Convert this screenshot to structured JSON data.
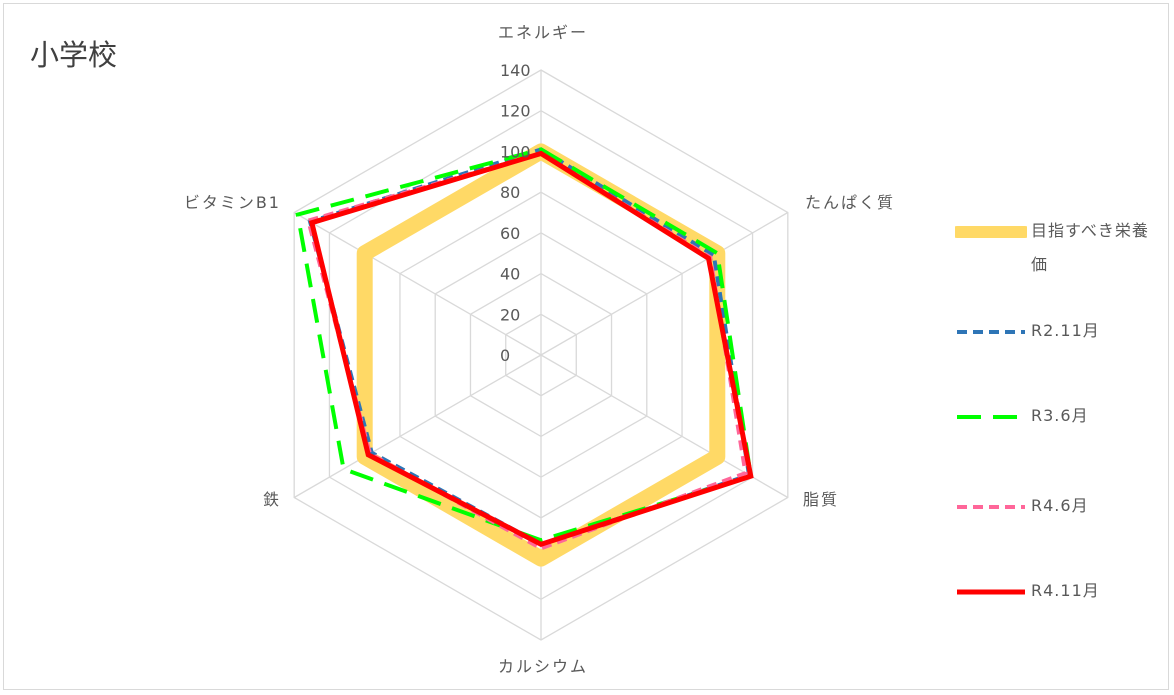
{
  "chart_data": {
    "type": "radar",
    "title": "小学校",
    "axes": [
      "エネルギー",
      "たんぱく質",
      "脂質",
      "カルシウム",
      "鉄",
      "ビタミンB1"
    ],
    "rlim": [
      0,
      140
    ],
    "rticks": [
      "0",
      "20",
      "40",
      "60",
      "80",
      "100",
      "120",
      "140"
    ],
    "grid": true,
    "legend_position": "right",
    "series": [
      {
        "name": "目指すべき栄養価",
        "values": [
          100,
          100,
          100,
          100,
          100,
          100
        ],
        "color": "#ffd966",
        "style": "solid-thick"
      },
      {
        "name": "R2.11月",
        "values": [
          101,
          98,
          118,
          93,
          96,
          131
        ],
        "color": "#2e75b6",
        "style": "dash"
      },
      {
        "name": "R3.6月",
        "values": [
          101,
          100,
          119,
          91,
          112,
          138
        ],
        "color": "#00ff00",
        "style": "long-dash"
      },
      {
        "name": "R4.6月",
        "values": [
          99,
          96,
          116,
          95,
          97,
          132
        ],
        "color": "#ff6699",
        "style": "dash"
      },
      {
        "name": "R4.11月",
        "values": [
          99,
          95,
          119,
          93,
          98,
          130
        ],
        "color": "#ff0000",
        "style": "solid"
      }
    ]
  }
}
